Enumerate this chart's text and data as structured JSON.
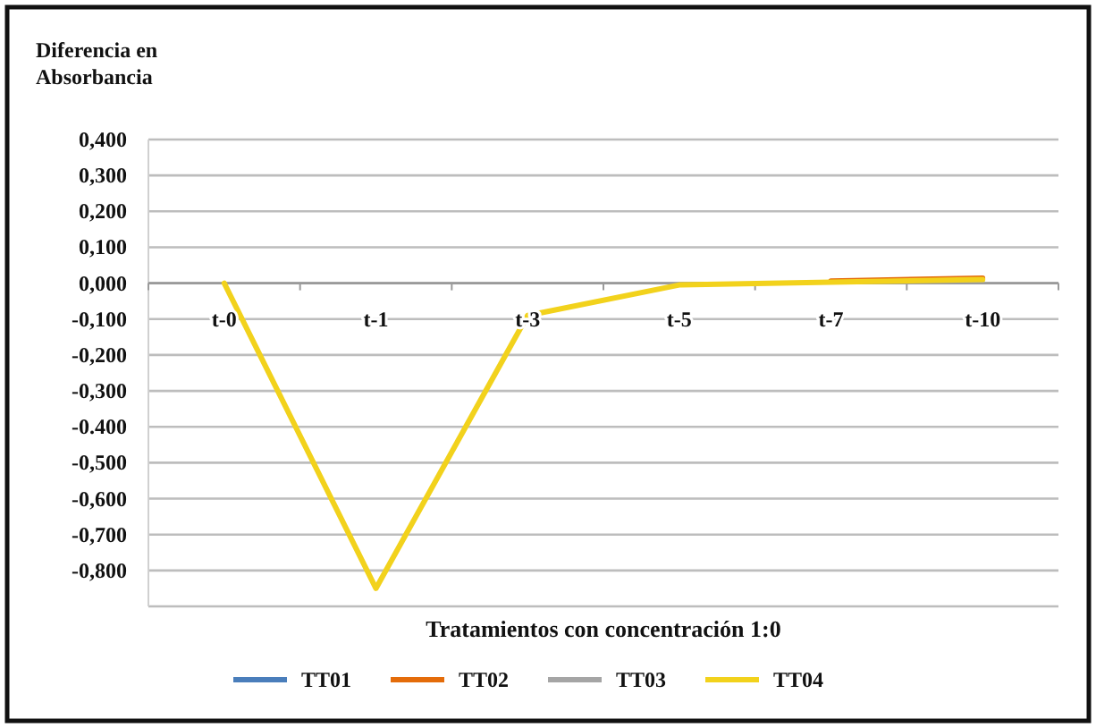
{
  "chart_data": {
    "type": "line",
    "ylabel": "Diferencia en Absorbancia",
    "xlabel": "Tratamientos  con concentración 1:0",
    "categories": [
      "t-0",
      "t-1",
      "t-3",
      "t-5",
      "t-7",
      "t-10"
    ],
    "series": [
      {
        "name": "TT01",
        "color": "#4a7ebb",
        "values": [
          null,
          null,
          null,
          null,
          null,
          null
        ]
      },
      {
        "name": "TT02",
        "color": "#e46c0a",
        "values": [
          null,
          null,
          null,
          null,
          0.006,
          0.014
        ]
      },
      {
        "name": "TT03",
        "color": "#a5a5a5",
        "values": [
          null,
          null,
          null,
          null,
          null,
          null
        ]
      },
      {
        "name": "TT04",
        "color": "#f2d21c",
        "values": [
          0,
          -0.85,
          -0.09,
          -0.005,
          0.003,
          0.01
        ]
      }
    ],
    "ylim": [
      -0.9,
      0.4
    ],
    "yticks": [
      {
        "value": 0.4,
        "label": "0,400"
      },
      {
        "value": 0.3,
        "label": "0,300"
      },
      {
        "value": 0.2,
        "label": "0,200"
      },
      {
        "value": 0.1,
        "label": "0,100"
      },
      {
        "value": 0,
        "label": "0,000"
      },
      {
        "value": -0.1,
        "label": "-0,100"
      },
      {
        "value": -0.2,
        "label": "-0,200"
      },
      {
        "value": -0.3,
        "label": "-0,300"
      },
      {
        "value": -0.4,
        "label": "-0.400"
      },
      {
        "value": -0.5,
        "label": "-0,500"
      },
      {
        "value": -0.6,
        "label": "-0,600"
      },
      {
        "value": -0.7,
        "label": "-0,700"
      },
      {
        "value": -0.8,
        "label": "-0,800"
      },
      {
        "value": -0.9,
        "label": null
      }
    ],
    "grid": "y",
    "legend": "bottom",
    "marker": "none",
    "line_style": "solid"
  }
}
